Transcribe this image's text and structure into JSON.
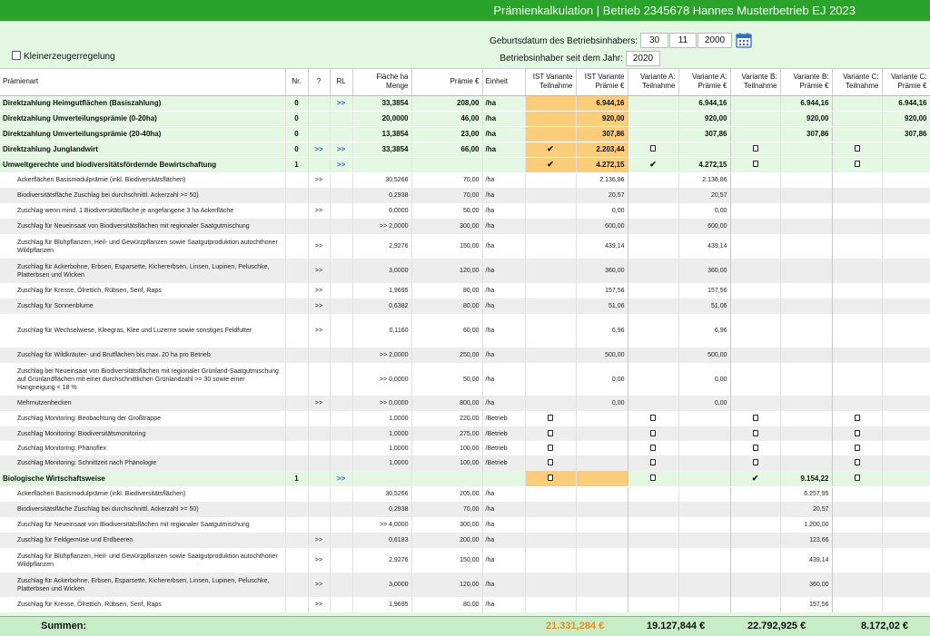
{
  "title": "Prämienkalkulation | Betrieb 2345678 Hannes Musterbetrieb EJ 2023",
  "form": {
    "small_producer_label": "Kleinerzeugerregelung",
    "birth_label": "Geburtsdatum des Betriebsinhabers:",
    "birth_day": "30",
    "birth_month": "11",
    "birth_year": "2000",
    "holder_since_label": "Betriebsinhaber seit dem Jahr:",
    "holder_since_value": "2020"
  },
  "colors": {
    "title_bar": "#29a329",
    "ist_highlight": "#fbcd79",
    "section_bg": "#e3f7e3",
    "sum_ist": "#f08a1a"
  },
  "table": {
    "headers": {
      "art": "Prämienart",
      "nr": "Nr.",
      "q": "?",
      "rl": "RL",
      "flaeche": "Fläche ha\nMenge",
      "praemie": "Prämie €",
      "einheit": "Einheit",
      "ist_t": "IST Variante\nTeilnahme",
      "ist_p": "IST Variante\nPrämie €",
      "a_t": "Variante A:\nTeilnahme",
      "a_p": "Variante A:\nPrämie €",
      "b_t": "Variante B:\nTeilnahme",
      "b_p": "Variante B:\nPrämie €",
      "c_t": "Variante C:\nTeilnahme",
      "c_p": "Variante C:\nPrämie €"
    },
    "rows": [
      {
        "k": "sec",
        "h": 17,
        "art": "Direktzahlung Heimgutflächen (Basiszahlung)",
        "nr": "0",
        "q": "",
        "rl": ">>",
        "fl": "33,3854",
        "pr": "208,00",
        "ei": "/ha",
        "ist_t": "",
        "ist_p": "6.944,16",
        "a_t": "",
        "a_p": "6.944,16",
        "b_t": "",
        "b_p": "6.944,16",
        "c_t": "",
        "c_p": "6.944,16"
      },
      {
        "k": "sec",
        "h": 17,
        "art": "Direktzahlung Umverteilungsprämie (0-20ha)",
        "nr": "0",
        "q": "",
        "rl": "",
        "fl": "20,0000",
        "pr": "46,00",
        "ei": "/ha",
        "ist_t": "",
        "ist_p": "920,00",
        "a_t": "",
        "a_p": "920,00",
        "b_t": "",
        "b_p": "920,00",
        "c_t": "",
        "c_p": "920,00"
      },
      {
        "k": "sec",
        "h": 17,
        "art": "Direktzahlung Umverteilungsprämie (20-40ha)",
        "nr": "0",
        "q": "",
        "rl": "",
        "fl": "13,3854",
        "pr": "23,00",
        "ei": "/ha",
        "ist_t": "",
        "ist_p": "307,86",
        "a_t": "",
        "a_p": "307,86",
        "b_t": "",
        "b_p": "307,86",
        "c_t": "",
        "c_p": "307,86"
      },
      {
        "k": "sec",
        "h": 17,
        "art": "Direktzahlung Junglandwirt",
        "nr": "0",
        "q": ">>",
        "rl": ">>",
        "fl": "33,3854",
        "pr": "66,00",
        "ei": "/ha",
        "ist_t": "tick",
        "ist_p": "2.203,44",
        "a_t": "box",
        "a_p": "",
        "b_t": "box",
        "b_p": "",
        "c_t": "box",
        "c_p": ""
      },
      {
        "k": "sec",
        "h": 17,
        "art": "Umweltgerechte und biodiversitätsfördernde Bewirtschaftung",
        "nr": "1",
        "q": "",
        "rl": ">>",
        "fl": "",
        "pr": "",
        "ei": "",
        "ist_t": "tick",
        "ist_p": "4.272,15",
        "a_t": "tick",
        "a_p": "4.272,15",
        "b_t": "box",
        "b_p": "",
        "c_t": "box",
        "c_p": ""
      },
      {
        "k": "sub",
        "h": 17,
        "art": "Ackerflächen Basismodulprämie (inkl. Biodiversitätsflächen)",
        "nr": "",
        "q": ">>",
        "rl": "",
        "fl": "30,5266",
        "pr": "70,00",
        "ei": "/ha",
        "ist_t": "",
        "ist_p": "2.136,86",
        "a_t": "",
        "a_p": "2.136,86",
        "b_t": "",
        "b_p": "",
        "c_t": "",
        "c_p": ""
      },
      {
        "k": "sub",
        "h": 17,
        "art": "Biodiversitätsfläche Zuschlag bei durchschnittl. Ackerzahl >= 50)",
        "nr": "",
        "q": "",
        "rl": "",
        "fl": "0,2938",
        "pr": "70,00",
        "ei": "/ha",
        "ist_t": "",
        "ist_p": "20,57",
        "a_t": "",
        "a_p": "20,57",
        "b_t": "",
        "b_p": "",
        "c_t": "",
        "c_p": ""
      },
      {
        "k": "sub",
        "h": 17,
        "art": "Zuschlag wenn mind. 1 Biodiversitätsfläche je angefangene 3 ha Ackerfläche",
        "nr": "",
        "q": ">>",
        "rl": "",
        "fl": "0,0000",
        "pr": "50,00",
        "ei": "/ha",
        "ist_t": "",
        "ist_p": "0,00",
        "a_t": "",
        "a_p": "0,00",
        "b_t": "",
        "b_p": "",
        "c_t": "",
        "c_p": ""
      },
      {
        "k": "sub",
        "h": 17,
        "art": "Zuschlag für Neueinsaat von Biodiversitätsflächen mit regionaler Saatgutmischung",
        "nr": "",
        "q": "",
        "rl": "",
        "fl": ">> 2,0000",
        "fb": 1,
        "pr": "300,00",
        "ei": "/ha",
        "ist_t": "",
        "ist_p": "600,00",
        "a_t": "",
        "a_p": "600,00",
        "b_t": "",
        "b_p": "",
        "c_t": "",
        "c_p": ""
      },
      {
        "k": "sub",
        "h": 27,
        "art": "Zuschlag für Blühpflanzen, Heil- und Gewürzpflanzen sowie Saatgutproduktion autochthoner Wildpflanzen",
        "nr": "",
        "q": ">>",
        "rl": "",
        "fl": "2,9276",
        "pr": "150,00",
        "ei": "/ha",
        "ist_t": "",
        "ist_p": "439,14",
        "a_t": "",
        "a_p": "439,14",
        "b_t": "",
        "b_p": "",
        "c_t": "",
        "c_p": ""
      },
      {
        "k": "sub",
        "h": 27,
        "art": "Zuschlag für Ackerbohne, Erbsen, Esparsette, Kichererbsen, Linsen, Lupinen, Peluschke, Platterbsen und Wicken",
        "nr": "",
        "q": ">>",
        "rl": "",
        "fl": "3,0000",
        "pr": "120,00",
        "ei": "/ha",
        "ist_t": "",
        "ist_p": "360,00",
        "a_t": "",
        "a_p": "360,00",
        "b_t": "",
        "b_p": "",
        "c_t": "",
        "c_p": ""
      },
      {
        "k": "sub",
        "h": 17,
        "art": "Zuschlag für Kresse, Ölrettich, Rübsen, Senf, Raps",
        "nr": "",
        "q": ">>",
        "rl": "",
        "fl": "1,9695",
        "pr": "80,00",
        "ei": "/ha",
        "ist_t": "",
        "ist_p": "157,56",
        "a_t": "",
        "a_p": "157,56",
        "b_t": "",
        "b_p": "",
        "c_t": "",
        "c_p": ""
      },
      {
        "k": "sub",
        "h": 17,
        "art": "Zuschlag für Sonnenblume",
        "nr": "",
        "q": ">>",
        "rl": "",
        "fl": "0,6382",
        "pr": "80,00",
        "ei": "/ha",
        "ist_t": "",
        "ist_p": "51,06",
        "a_t": "",
        "a_p": "51,06",
        "b_t": "",
        "b_p": "",
        "c_t": "",
        "c_p": ""
      },
      {
        "k": "sub",
        "h": 37,
        "art": "Zuschlag für Wechselwiese, Kleegras, Klee und Luzerne sowie sonstiges Feldfutter",
        "nr": "",
        "q": ">>",
        "rl": "",
        "fl": "0,1160",
        "pr": "60,00",
        "ei": "/ha",
        "ist_t": "",
        "ist_p": "6,96",
        "a_t": "",
        "a_p": "6,96",
        "b_t": "",
        "b_p": "",
        "c_t": "",
        "c_p": ""
      },
      {
        "k": "sub",
        "h": 17,
        "art": "Zuschlag für Wildkräuter- und Brutflächen bis max. 20 ha pro Betrieb",
        "nr": "",
        "q": "",
        "rl": "",
        "fl": ">> 2,0000",
        "fb": 1,
        "pr": "250,00",
        "ei": "/ha",
        "ist_t": "",
        "ist_p": "500,00",
        "a_t": "",
        "a_p": "500,00",
        "b_t": "",
        "b_p": "",
        "c_t": "",
        "c_p": ""
      },
      {
        "k": "sub",
        "h": 36,
        "art": "Zuschlag bei Neueinsaat von Biodiversitätsflächen mit regionaler Grünland-Saatgutmischung auf Grünlandflächen mit einer durchschnittlichen Grünlandzahl >= 30 sowie einer Hangneigung < 18 %",
        "nr": "",
        "q": "",
        "rl": "",
        "fl": ">> 0,0000",
        "fb": 1,
        "pr": "50,00",
        "ei": "/ha",
        "ist_t": "",
        "ist_p": "0,00",
        "a_t": "",
        "a_p": "0,00",
        "b_t": "",
        "b_p": "",
        "c_t": "",
        "c_p": ""
      },
      {
        "k": "sub",
        "h": 17,
        "art": "Mehrnutzenhecken",
        "nr": "",
        "q": ">>",
        "rl": "",
        "fl": ">> 0,0000",
        "fb": 1,
        "pr": "800,00",
        "ei": "/ha",
        "ist_t": "",
        "ist_p": "0,00",
        "a_t": "",
        "a_p": "0,00",
        "b_t": "",
        "b_p": "",
        "c_t": "",
        "c_p": ""
      },
      {
        "k": "sub",
        "h": 17,
        "art": "Zuschlag Monitoring: Beobachtung der Großtrappe",
        "nr": "",
        "q": "",
        "rl": "",
        "fl": "1,0000",
        "pr": "220,00",
        "ei": "/Betrieb",
        "ist_t": "box",
        "ist_p": "",
        "a_t": "box",
        "a_p": "",
        "b_t": "box",
        "b_p": "",
        "c_t": "box",
        "c_p": ""
      },
      {
        "k": "sub",
        "h": 16,
        "art": "Zuschlag Monitoring: Biodiversitätsmonitoring",
        "nr": "",
        "q": "",
        "rl": "",
        "fl": "1,0000",
        "pr": "275,00",
        "ei": "/Betrieb",
        "ist_t": "box",
        "ist_p": "",
        "a_t": "box",
        "a_p": "",
        "b_t": "box",
        "b_p": "",
        "c_t": "box",
        "c_p": ""
      },
      {
        "k": "sub",
        "h": 16,
        "art": "Zuschlag Monitoring: Phänoflex",
        "nr": "",
        "q": "",
        "rl": "",
        "fl": "1,0000",
        "pr": "100,00",
        "ei": "/Betrieb",
        "ist_t": "box",
        "ist_p": "",
        "a_t": "box",
        "a_p": "",
        "b_t": "box",
        "b_p": "",
        "c_t": "box",
        "c_p": ""
      },
      {
        "k": "sub",
        "h": 17,
        "art": "Zuschlag Monitoring: Schnittzeit nach Phänologie",
        "nr": "",
        "q": "",
        "rl": "",
        "fl": "1,0000",
        "pr": "100,00",
        "ei": "/Betrieb",
        "ist_t": "box",
        "ist_p": "",
        "a_t": "box",
        "a_p": "",
        "b_t": "box",
        "b_p": "",
        "c_t": "box",
        "c_p": ""
      },
      {
        "k": "sec",
        "h": 17,
        "art": "Biologische Wirtschaftsweise",
        "nr": "1",
        "q": "",
        "rl": ">>",
        "fl": "",
        "pr": "",
        "ei": "",
        "ist_t": "box",
        "ist_p": "",
        "a_t": "box",
        "a_p": "",
        "b_t": "tick",
        "b_p": "9.154,22",
        "c_t": "box",
        "c_p": ""
      },
      {
        "k": "sub",
        "h": 17,
        "art": "Ackerflächen Basismodulprämie (inkl. Biodiversitätsflächen)",
        "nr": "",
        "q": "",
        "rl": "",
        "fl": "30,5266",
        "pr": "205,00",
        "ei": "/ha",
        "ist_t": "",
        "ist_p": "",
        "a_t": "",
        "a_p": "",
        "b_t": "",
        "b_p": "6.257,95",
        "c_t": "",
        "c_p": ""
      },
      {
        "k": "sub",
        "h": 17,
        "art": "Biodiversitätsfläche Zuschlag bei durchschnittl. Ackerzahl >= 50)",
        "nr": "",
        "q": "",
        "rl": "",
        "fl": "0,2938",
        "pr": "70,00",
        "ei": "/ha",
        "ist_t": "",
        "ist_p": "",
        "a_t": "",
        "a_p": "",
        "b_t": "",
        "b_p": "20,57",
        "c_t": "",
        "c_p": ""
      },
      {
        "k": "sub",
        "h": 17,
        "art": "Zuschlag für Neueinsaat von Biodiversitätsflächen mit regionaler Saatgutmischung",
        "nr": "",
        "q": "",
        "rl": "",
        "fl": ">> 4,0000",
        "fb": 1,
        "pr": "300,00",
        "ei": "/ha",
        "ist_t": "",
        "ist_p": "",
        "a_t": "",
        "a_p": "",
        "b_t": "",
        "b_p": "1.200,00",
        "c_t": "",
        "c_p": ""
      },
      {
        "k": "sub",
        "h": 17,
        "art": "Zuschlag für Feldgemüse und Erdbeeren",
        "nr": "",
        "q": ">>",
        "rl": "",
        "fl": "0,6183",
        "pr": "200,00",
        "ei": "/ha",
        "ist_t": "",
        "ist_p": "",
        "a_t": "",
        "a_p": "",
        "b_t": "",
        "b_p": "123,66",
        "c_t": "",
        "c_p": ""
      },
      {
        "k": "sub",
        "h": 27,
        "art": "Zuschlag für Blühpflanzen, Heil- und Gewürzpflanzen sowie Saatgutproduktion autochthoner Wildpflanzen",
        "nr": "",
        "q": ">>",
        "rl": "",
        "fl": "2,9276",
        "pr": "150,00",
        "ei": "/ha",
        "ist_t": "",
        "ist_p": "",
        "a_t": "",
        "a_p": "",
        "b_t": "",
        "b_p": "439,14",
        "c_t": "",
        "c_p": ""
      },
      {
        "k": "sub",
        "h": 27,
        "art": "Zuschlag für Ackerbohne, Erbsen, Esparsette, Kichererbsen, Linsen, Lupinen, Peluschke, Platterbsen und Wicken",
        "nr": "",
        "q": ">>",
        "rl": "",
        "fl": "3,0000",
        "pr": "120,00",
        "ei": "/ha",
        "ist_t": "",
        "ist_p": "",
        "a_t": "",
        "a_p": "",
        "b_t": "",
        "b_p": "360,00",
        "c_t": "",
        "c_p": ""
      },
      {
        "k": "sub",
        "h": 17,
        "art": "Zuschlag für Kresse, Ölrettich, Rübsen, Senf, Raps",
        "nr": "",
        "q": ">>",
        "rl": "",
        "fl": "1,9695",
        "pr": "80,00",
        "ei": "/ha",
        "ist_t": "",
        "ist_p": "",
        "a_t": "",
        "a_p": "",
        "b_t": "",
        "b_p": "157,56",
        "c_t": "",
        "c_p": ""
      }
    ]
  },
  "summen": {
    "label": "Summen:",
    "ist": "21.331,284 €",
    "a": "19.127,844 €",
    "b": "22.792,925 €",
    "c": "8.172,02 €"
  }
}
